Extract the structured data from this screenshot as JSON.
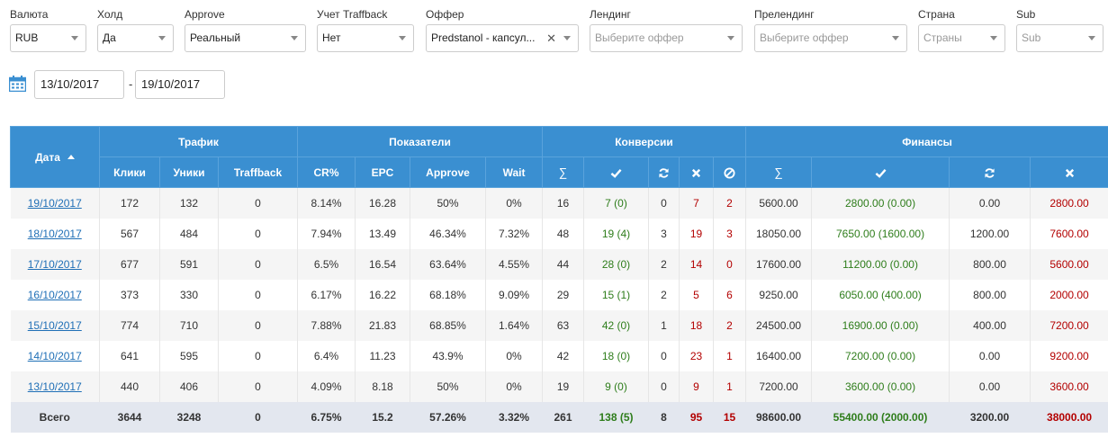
{
  "filters": [
    {
      "label": "Валюта",
      "value": "RUB",
      "placeholder": ""
    },
    {
      "label": "Холд",
      "value": "Да",
      "placeholder": ""
    },
    {
      "label": "Approve",
      "value": "Реальный",
      "placeholder": ""
    },
    {
      "label": "Учет Traffback",
      "value": "Нет",
      "placeholder": ""
    },
    {
      "label": "Оффер",
      "value": "Predstanol - капсул...",
      "placeholder": ""
    },
    {
      "label": "Лендинг",
      "value": "",
      "placeholder": "Выберите оффер"
    },
    {
      "label": "Прелендинг",
      "value": "",
      "placeholder": "Выберите оффер"
    },
    {
      "label": "Страна",
      "value": "",
      "placeholder": "Страны"
    },
    {
      "label": "Sub",
      "value": "",
      "placeholder": "Sub"
    }
  ],
  "dates": {
    "from": "13/10/2017",
    "separator": "-",
    "to": "19/10/2017"
  },
  "table": {
    "date_header": "Дата",
    "groups": {
      "traffic": "Трафик",
      "indicators": "Показатели",
      "conversions": "Конверсии",
      "finance": "Финансы"
    },
    "sub_headers": {
      "clicks": "Клики",
      "uniques": "Уники",
      "traffback": "Traffback",
      "cr": "CR%",
      "epc": "EPC",
      "approve": "Approve",
      "wait": "Wait",
      "sigma": "∑"
    },
    "rows": [
      {
        "date": "19/10/2017",
        "clicks": "172",
        "uniques": "132",
        "traffback": "0",
        "cr": "8.14%",
        "epc": "16.28",
        "approve": "50%",
        "wait": "0%",
        "c_total": "16",
        "c_approved": "7 (0)",
        "c_pending": "0",
        "c_rejected": "7",
        "c_trash": "2",
        "f_total": "5600.00",
        "f_approved": "2800.00 (0.00)",
        "f_pending": "0.00",
        "f_rejected": "2800.00"
      },
      {
        "date": "18/10/2017",
        "clicks": "567",
        "uniques": "484",
        "traffback": "0",
        "cr": "7.94%",
        "epc": "13.49",
        "approve": "46.34%",
        "wait": "7.32%",
        "c_total": "48",
        "c_approved": "19 (4)",
        "c_pending": "3",
        "c_rejected": "19",
        "c_trash": "3",
        "f_total": "18050.00",
        "f_approved": "7650.00 (1600.00)",
        "f_pending": "1200.00",
        "f_rejected": "7600.00"
      },
      {
        "date": "17/10/2017",
        "clicks": "677",
        "uniques": "591",
        "traffback": "0",
        "cr": "6.5%",
        "epc": "16.54",
        "approve": "63.64%",
        "wait": "4.55%",
        "c_total": "44",
        "c_approved": "28 (0)",
        "c_pending": "2",
        "c_rejected": "14",
        "c_trash": "0",
        "f_total": "17600.00",
        "f_approved": "11200.00 (0.00)",
        "f_pending": "800.00",
        "f_rejected": "5600.00"
      },
      {
        "date": "16/10/2017",
        "clicks": "373",
        "uniques": "330",
        "traffback": "0",
        "cr": "6.17%",
        "epc": "16.22",
        "approve": "68.18%",
        "wait": "9.09%",
        "c_total": "29",
        "c_approved": "15 (1)",
        "c_pending": "2",
        "c_rejected": "5",
        "c_trash": "6",
        "f_total": "9250.00",
        "f_approved": "6050.00 (400.00)",
        "f_pending": "800.00",
        "f_rejected": "2000.00"
      },
      {
        "date": "15/10/2017",
        "clicks": "774",
        "uniques": "710",
        "traffback": "0",
        "cr": "7.88%",
        "epc": "21.83",
        "approve": "68.85%",
        "wait": "1.64%",
        "c_total": "63",
        "c_approved": "42 (0)",
        "c_pending": "1",
        "c_rejected": "18",
        "c_trash": "2",
        "f_total": "24500.00",
        "f_approved": "16900.00 (0.00)",
        "f_pending": "400.00",
        "f_rejected": "7200.00"
      },
      {
        "date": "14/10/2017",
        "clicks": "641",
        "uniques": "595",
        "traffback": "0",
        "cr": "6.4%",
        "epc": "11.23",
        "approve": "43.9%",
        "wait": "0%",
        "c_total": "42",
        "c_approved": "18 (0)",
        "c_pending": "0",
        "c_rejected": "23",
        "c_trash": "1",
        "f_total": "16400.00",
        "f_approved": "7200.00 (0.00)",
        "f_pending": "0.00",
        "f_rejected": "9200.00"
      },
      {
        "date": "13/10/2017",
        "clicks": "440",
        "uniques": "406",
        "traffback": "0",
        "cr": "4.09%",
        "epc": "8.18",
        "approve": "50%",
        "wait": "0%",
        "c_total": "19",
        "c_approved": "9 (0)",
        "c_pending": "0",
        "c_rejected": "9",
        "c_trash": "1",
        "f_total": "7200.00",
        "f_approved": "3600.00 (0.00)",
        "f_pending": "0.00",
        "f_rejected": "3600.00"
      }
    ],
    "total": {
      "label": "Всего",
      "clicks": "3644",
      "uniques": "3248",
      "traffback": "0",
      "cr": "6.75%",
      "epc": "15.2",
      "approve": "57.26%",
      "wait": "3.32%",
      "c_total": "261",
      "c_approved": "138 (5)",
      "c_pending": "8",
      "c_rejected": "95",
      "c_trash": "15",
      "f_total": "98600.00",
      "f_approved": "55400.00 (2000.00)",
      "f_pending": "3200.00",
      "f_rejected": "38000.00"
    }
  },
  "colors": {
    "header_bg": "#3a8fd1",
    "approved": "#2e7d1b",
    "rejected": "#b30000",
    "link": "#1f6fb6",
    "total_bg": "#e3e7ef"
  },
  "icons": {
    "calendar": "calendar-icon",
    "approved": "check-icon",
    "pending": "refresh-icon",
    "rejected": "cross-icon",
    "trash": "ban-icon",
    "sort": "sort-asc-icon"
  }
}
